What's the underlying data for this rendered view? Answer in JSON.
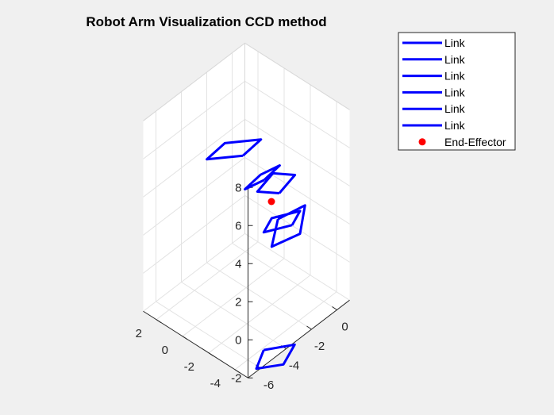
{
  "chart_data": {
    "type": "line3d",
    "title": "Robot Arm Visualization CCD method",
    "xlabel": "",
    "ylabel": "",
    "zlabel": "",
    "xlim": [
      -7,
      1
    ],
    "ylim": [
      -5,
      3
    ],
    "zlim": [
      -2,
      8
    ],
    "x_ticks": [
      "-6",
      "-4",
      "-2",
      "0"
    ],
    "y_ticks": [
      "-4",
      "-2",
      "0",
      "2"
    ],
    "z_ticks": [
      "-2",
      "0",
      "2",
      "4",
      "6",
      "8"
    ],
    "grid": true,
    "view": "3d-isometric",
    "legend_position": "top-right",
    "series": [
      {
        "name": "Link",
        "color": "#0000ff",
        "kind": "line",
        "points": [
          [
            -3.8,
            -3.1,
            -3.0
          ],
          [
            -2.5,
            -4.2,
            -2.9
          ],
          [
            -3.8,
            -4.6,
            -3.1
          ],
          [
            -4.9,
            -3.6,
            -3.2
          ],
          [
            -3.8,
            -3.1,
            -3.0
          ]
        ]
      },
      {
        "name": "Link",
        "color": "#0000ff",
        "kind": "line",
        "points": [
          [
            0.1,
            -0.4,
            0.7
          ],
          [
            1.2,
            -1.4,
            1.3
          ],
          [
            0.6,
            -1.6,
            0.2
          ],
          [
            -0.6,
            -0.6,
            -0.3
          ],
          [
            0.1,
            -0.4,
            0.7
          ]
        ]
      },
      {
        "name": "Link",
        "color": "#0000ff",
        "kind": "line",
        "points": [
          [
            0.7,
            -0.9,
            0.3
          ],
          [
            0.6,
            -1.6,
            1.4
          ],
          [
            -0.5,
            -0.5,
            1.1
          ],
          [
            -0.4,
            0.2,
            0.0
          ],
          [
            0.7,
            -0.9,
            0.3
          ]
        ]
      },
      {
        "name": "Link",
        "color": "#0000ff",
        "kind": "line",
        "points": [
          [
            0.0,
            -0.6,
            2.2
          ],
          [
            0.3,
            -1.5,
            3.4
          ],
          [
            -0.5,
            -0.6,
            3.5
          ],
          [
            -0.8,
            0.3,
            2.3
          ],
          [
            0.0,
            -0.6,
            2.2
          ]
        ]
      },
      {
        "name": "Link",
        "color": "#0000ff",
        "kind": "line",
        "points": [
          [
            -1.3,
            -0.7,
            3.6
          ],
          [
            -1.1,
            -1.7,
            4.7
          ],
          [
            -2.2,
            -1.3,
            4.6
          ],
          [
            -2.4,
            -0.3,
            3.5
          ],
          [
            -1.3,
            -0.7,
            3.6
          ]
        ]
      },
      {
        "name": "Link",
        "color": "#0000ff",
        "kind": "line",
        "points": [
          [
            -3.9,
            -1.6,
            6.6
          ],
          [
            -3.2,
            -2.3,
            7.4
          ],
          [
            -4.8,
            -1.1,
            7.5
          ],
          [
            -5.5,
            -0.4,
            6.7
          ],
          [
            -3.9,
            -1.6,
            6.6
          ]
        ]
      },
      {
        "name": "End-Effector",
        "color": "#ff0000",
        "kind": "marker",
        "points": [
          [
            0,
            0,
            1.5
          ]
        ]
      }
    ]
  }
}
